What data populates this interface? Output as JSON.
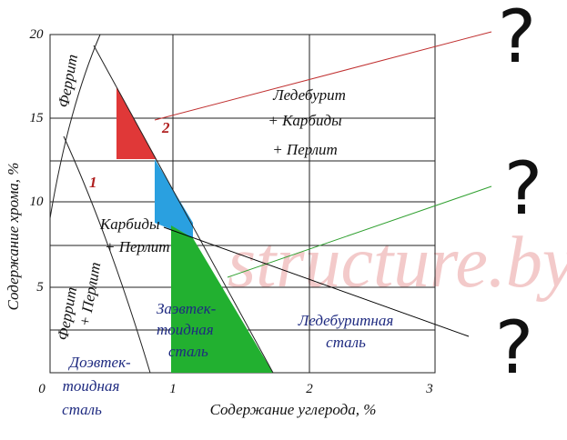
{
  "axes": {
    "x_label": "Содержание углерода, %",
    "y_label": "Содержание хрома, %",
    "x_ticks": [
      "0",
      "1",
      "2",
      "3"
    ],
    "y_ticks": [
      "20",
      "15",
      "10",
      "5"
    ]
  },
  "regions": {
    "ferrite": "Феррит",
    "ledeburite": [
      "Ледебурит",
      "+ Карбиды",
      "+ Перлит"
    ],
    "carbides": [
      "Карбиды",
      "+ Перлит"
    ],
    "ferrite_pearlite": [
      "Феррит",
      "+ Перлит"
    ],
    "hypereutectoid": [
      "Заэвтек-",
      "тоидная",
      "сталь"
    ],
    "ledeburitic": [
      "Ледебуритная",
      "сталь"
    ],
    "hypoeutectoid": [
      "Доэвтек-",
      "тоидная",
      "сталь"
    ]
  },
  "curve_labels": [
    "1",
    "2"
  ],
  "watermark": "structure.by",
  "questions": [
    "?",
    "?",
    "?"
  ]
}
